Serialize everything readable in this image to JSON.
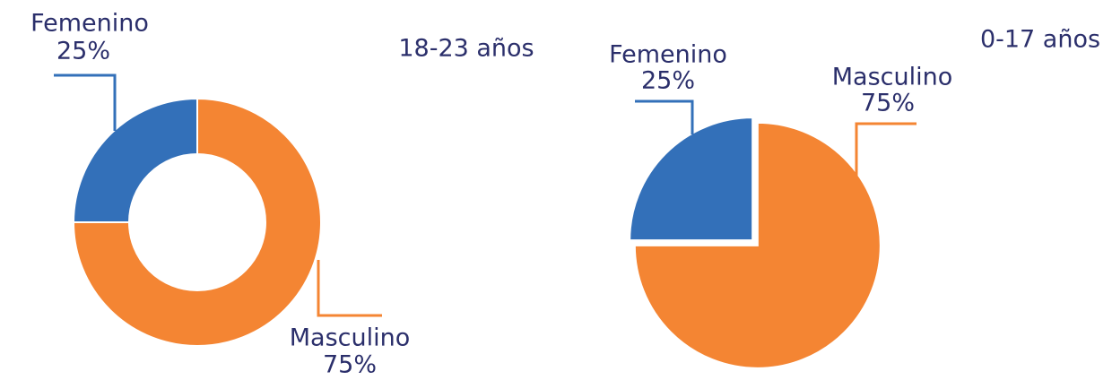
{
  "chart_data": [
    {
      "type": "donut",
      "title": "18-23 años",
      "categories": [
        "Femenino",
        "Masculino"
      ],
      "values": [
        25,
        75
      ],
      "value_labels": [
        "25%",
        "75%"
      ],
      "colors": [
        "#3370b9",
        "#f48533"
      ]
    },
    {
      "type": "pie",
      "title": "0-17 años",
      "categories": [
        "Femenino",
        "Masculino"
      ],
      "values": [
        25,
        75
      ],
      "value_labels": [
        "25%",
        "75%"
      ],
      "colors": [
        "#3370b9",
        "#f48533"
      ]
    }
  ]
}
